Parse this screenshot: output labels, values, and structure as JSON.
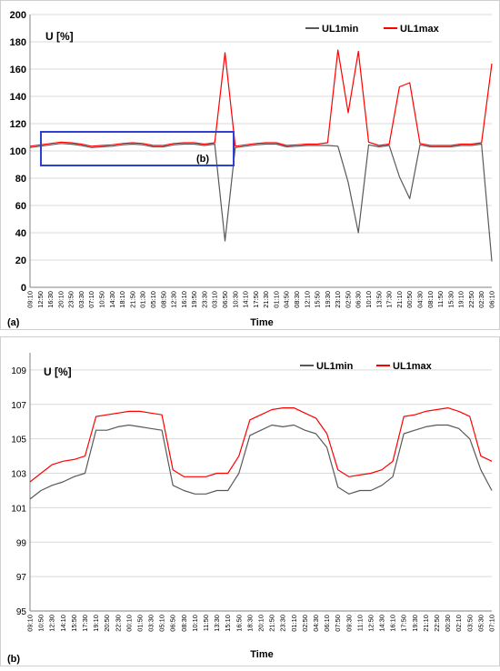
{
  "chart_data": [
    {
      "type": "line",
      "panel_label": "(a)",
      "title": "",
      "ylabel": "U [%]",
      "xlabel": "Time",
      "ylim": [
        0,
        200
      ],
      "yticks": [
        0,
        20,
        40,
        60,
        80,
        100,
        120,
        140,
        160,
        180,
        200
      ],
      "grid": true,
      "legend_position": "top-right",
      "zoom_box_label": "(b)",
      "x": [
        "09:10",
        "12:50",
        "16:30",
        "20:10",
        "23:50",
        "03:30",
        "07:10",
        "10:50",
        "14:30",
        "18:10",
        "21:50",
        "01:30",
        "05:10",
        "08:50",
        "12:30",
        "16:10",
        "19:50",
        "23:30",
        "03:10",
        "06:50",
        "10:30",
        "14:10",
        "17:50",
        "21:30",
        "01:10",
        "04:50",
        "08:30",
        "12:10",
        "15:50",
        "19:30",
        "23:10",
        "02:50",
        "06:30",
        "10:10",
        "13:50",
        "17:30",
        "21:10",
        "00:50",
        "04:30",
        "08:10",
        "11:50",
        "15:30",
        "19:10",
        "22:50",
        "02:30",
        "06:10"
      ],
      "series": [
        {
          "name": "UL1min",
          "color": "#595959",
          "values": [
            102.5,
            103.5,
            104.5,
            105.5,
            105,
            104,
            102.5,
            103,
            103.5,
            104.5,
            105,
            104.5,
            103,
            103,
            104.5,
            105,
            105,
            104,
            105,
            34,
            102.5,
            103.5,
            104.5,
            105,
            105,
            103,
            103.5,
            104,
            104,
            104,
            103.5,
            77,
            40,
            104.5,
            103,
            104,
            81,
            65,
            104.5,
            103,
            103,
            103,
            104,
            104,
            105,
            19
          ]
        },
        {
          "name": "UL1max",
          "color": "#ff0000",
          "values": [
            103.5,
            104.5,
            105.5,
            106.5,
            106,
            105,
            103.5,
            104,
            104.5,
            105.5,
            106,
            105.5,
            104,
            104,
            105.5,
            106,
            106,
            105,
            106,
            172,
            103.5,
            104.5,
            105.5,
            106,
            106,
            104,
            104.5,
            105,
            105,
            106,
            174,
            128,
            173,
            106.5,
            104,
            105,
            147,
            150,
            105.5,
            104,
            104,
            104,
            105,
            105,
            106,
            164
          ]
        }
      ]
    },
    {
      "type": "line",
      "panel_label": "(b)",
      "title": "",
      "ylabel": "U [%]",
      "xlabel": "Time",
      "ylim": [
        95,
        110
      ],
      "yticks": [
        95,
        97,
        99,
        101,
        103,
        105,
        107,
        109
      ],
      "grid": true,
      "legend_position": "top-center",
      "x": [
        "09:10",
        "10:50",
        "12:30",
        "14:10",
        "15:50",
        "17:30",
        "19:10",
        "20:50",
        "22:30",
        "00:10",
        "01:50",
        "03:30",
        "05:10",
        "06:50",
        "08:30",
        "10:10",
        "11:50",
        "13:30",
        "15:10",
        "16:50",
        "18:30",
        "20:10",
        "21:50",
        "23:30",
        "01:10",
        "02:50",
        "04:30",
        "06:10",
        "07:50",
        "09:30",
        "11:10",
        "12:50",
        "14:30",
        "16:10",
        "17:50",
        "19:30",
        "21:10",
        "22:50",
        "00:30",
        "02:10",
        "03:50",
        "05:30",
        "07:10"
      ],
      "series": [
        {
          "name": "UL1min",
          "color": "#595959",
          "values": [
            101.5,
            102,
            102.3,
            102.5,
            102.8,
            103,
            105.5,
            105.5,
            105.7,
            105.8,
            105.7,
            105.6,
            105.5,
            102.3,
            102,
            101.8,
            101.8,
            102,
            102,
            103,
            105.2,
            105.5,
            105.8,
            105.7,
            105.8,
            105.5,
            105.3,
            104.5,
            102.2,
            101.8,
            102,
            102,
            102.3,
            102.8,
            105.3,
            105.5,
            105.7,
            105.8,
            105.8,
            105.6,
            105,
            103.2,
            102
          ]
        },
        {
          "name": "UL1max",
          "color": "#ff0000",
          "values": [
            102.5,
            103,
            103.5,
            103.7,
            103.8,
            104,
            106.3,
            106.4,
            106.5,
            106.6,
            106.6,
            106.5,
            106.4,
            103.2,
            102.8,
            102.8,
            102.8,
            103,
            103,
            104,
            106.1,
            106.4,
            106.7,
            106.8,
            106.8,
            106.5,
            106.2,
            105.3,
            103.2,
            102.8,
            102.9,
            103,
            103.2,
            103.7,
            106.3,
            106.4,
            106.6,
            106.7,
            106.8,
            106.6,
            106.3,
            104,
            103.7
          ]
        }
      ]
    }
  ]
}
